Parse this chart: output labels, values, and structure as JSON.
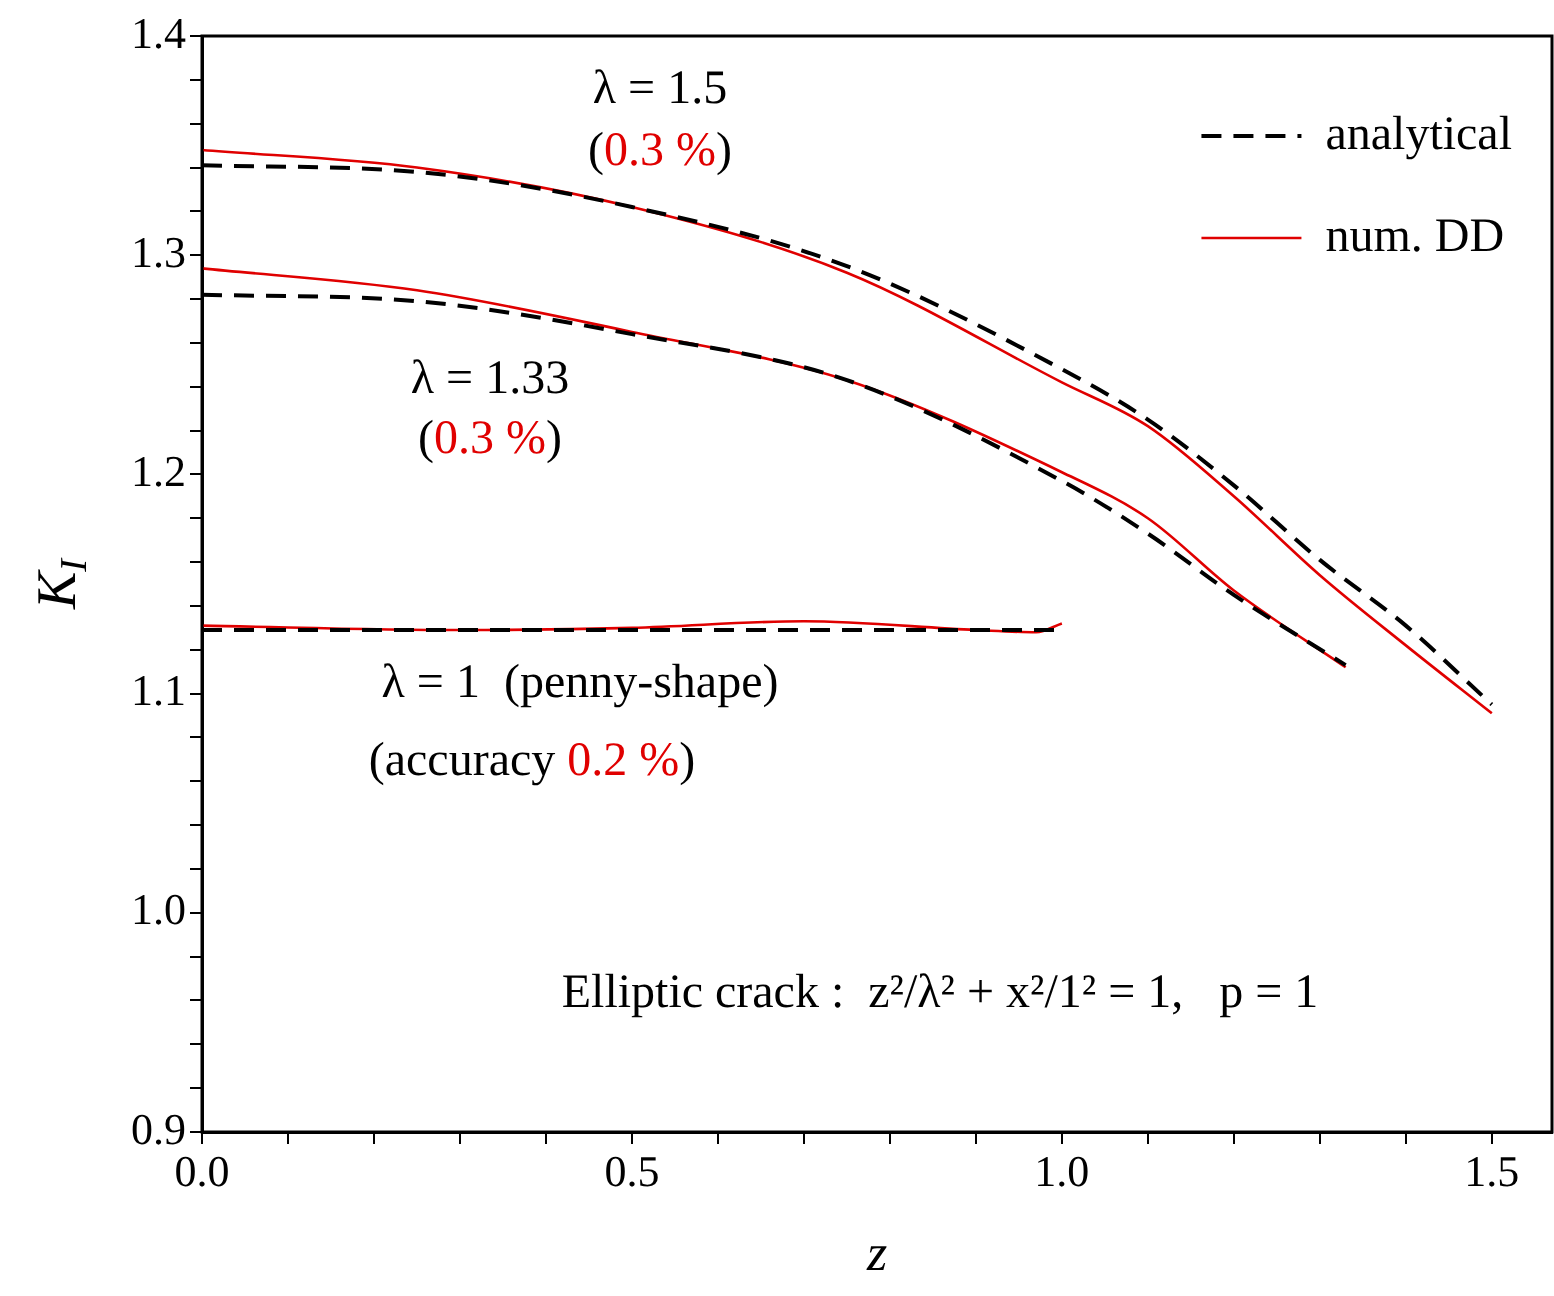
{
  "chart_data": {
    "type": "line",
    "xlabel": "z",
    "ylabel": "K$_{I}$",
    "xlim": [
      0,
      1.57
    ],
    "ylim": [
      0.9,
      1.4
    ],
    "xticks": [
      {
        "value": 0,
        "label": "0.0"
      },
      {
        "value": 0.1,
        "label": null
      },
      {
        "value": 0.2,
        "label": null
      },
      {
        "value": 0.3,
        "label": null
      },
      {
        "value": 0.4,
        "label": null
      },
      {
        "value": 0.5,
        "label": "0.5"
      },
      {
        "value": 0.6,
        "label": null
      },
      {
        "value": 0.7,
        "label": null
      },
      {
        "value": 0.8,
        "label": null
      },
      {
        "value": 0.9,
        "label": null
      },
      {
        "value": 1,
        "label": "1.0"
      },
      {
        "value": 1.1,
        "label": null
      },
      {
        "value": 1.2,
        "label": null
      },
      {
        "value": 1.3,
        "label": null
      },
      {
        "value": 1.4,
        "label": null
      },
      {
        "value": 1.5,
        "label": "1.5"
      }
    ],
    "yticks": [
      0.9,
      {
        "value": 0.92,
        "label": null
      },
      {
        "value": 0.94,
        "label": null
      },
      {
        "value": 0.96,
        "label": null
      },
      {
        "value": 0.98,
        "label": null
      },
      {
        "value": 1,
        "label": "1.0"
      },
      {
        "value": 1.02,
        "label": null
      },
      {
        "value": 1.04,
        "label": null
      },
      {
        "value": 1.06,
        "label": null
      },
      {
        "value": 1.08,
        "label": null
      },
      1.1,
      {
        "value": 1.12,
        "label": null
      },
      {
        "value": 1.14,
        "label": null
      },
      {
        "value": 1.16,
        "label": null
      },
      {
        "value": 1.18,
        "label": null
      },
      1.2,
      {
        "value": 1.22,
        "label": null
      },
      {
        "value": 1.24,
        "label": null
      },
      {
        "value": 1.26,
        "label": null
      },
      {
        "value": 1.28,
        "label": null
      },
      1.3,
      {
        "value": 1.32,
        "label": null
      },
      {
        "value": 1.34,
        "label": null
      },
      {
        "value": 1.36,
        "label": null
      },
      {
        "value": 1.38,
        "label": null
      },
      1.4
    ],
    "grid": false,
    "legend": "top right",
    "marker": "none",
    "series": [
      {
        "name": "analytical",
        "color": "#000000",
        "line_style": "dashed",
        "x": [
          0,
          0.25,
          0.5,
          0.75,
          1,
          1.1,
          1.2,
          1.3,
          1.4,
          1.5
        ],
        "values": [
          1.341,
          1.338,
          1.322,
          1.295,
          1.248,
          1.225,
          1.195,
          1.161,
          1.131,
          1.095
        ]
      },
      {
        "name": "num. DD",
        "color": "#e00000",
        "line_style": "solid",
        "x": [
          0,
          0.25,
          0.5,
          0.75,
          1,
          1.1,
          1.2,
          1.3,
          1.4,
          1.5
        ],
        "values": [
          1.348,
          1.34,
          1.322,
          1.292,
          1.242,
          1.222,
          1.19,
          1.154,
          1.122,
          1.091
        ]
      },
      {
        "color": "#000000",
        "line_style": "dashed",
        "x": [
          0,
          0.25,
          0.5,
          0.75,
          1,
          1.1,
          1.2,
          1.33
        ],
        "values": [
          1.282,
          1.279,
          1.264,
          1.243,
          1.197,
          1.173,
          1.145,
          1.113
        ]
      },
      {
        "color": "#e00000",
        "line_style": "solid",
        "x": [
          0,
          0.25,
          0.5,
          0.75,
          1,
          1.1,
          1.2,
          1.33
        ],
        "values": [
          1.294,
          1.284,
          1.265,
          1.243,
          1.201,
          1.18,
          1.147,
          1.112
        ]
      },
      {
        "color": "#000000",
        "line_style": "dashed",
        "x": [
          0,
          0.5,
          1
        ],
        "values": [
          1.129,
          1.129,
          1.129
        ]
      },
      {
        "color": "#e00000",
        "line_style": "solid",
        "x": [
          0,
          0.3,
          0.5,
          0.7,
          0.9,
          0.97,
          1
        ],
        "values": [
          1.131,
          1.129,
          1.13,
          1.133,
          1.129,
          1.128,
          1.132
        ]
      }
    ],
    "annotations": [
      "λ = 1.5",
      "(0.3 %)",
      "λ = 1.33",
      "(0.3 %)",
      "λ = 1  (penny-shape)",
      "(accuracy 0.2 %)",
      "Elliptic crack :  z²/λ² + x²/1² = 1,   p = 1"
    ]
  }
}
